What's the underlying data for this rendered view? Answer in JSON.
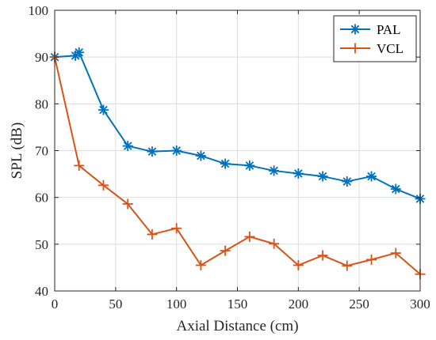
{
  "chart_data": {
    "type": "line",
    "xlabel": "Axial Distance (cm)",
    "ylabel": "SPL (dB)",
    "xlim": [
      0,
      300
    ],
    "ylim": [
      40,
      100
    ],
    "xticks": [
      0,
      50,
      100,
      150,
      200,
      250,
      300
    ],
    "yticks": [
      40,
      50,
      60,
      70,
      80,
      90,
      100
    ],
    "grid": true,
    "legend_position": "top-right",
    "series": [
      {
        "name": "PAL",
        "color": "#0072BD",
        "marker": "asterisk",
        "x": [
          0,
          17,
          20,
          40,
          60,
          80,
          100,
          120,
          140,
          160,
          180,
          200,
          220,
          240,
          260,
          280,
          300
        ],
        "y": [
          90,
          90.3,
          91,
          78.7,
          71,
          69.8,
          70,
          68.9,
          67.2,
          66.8,
          65.7,
          65.1,
          64.5,
          63.4,
          64.5,
          61.8,
          59.7
        ]
      },
      {
        "name": "VCL",
        "color": "#D95319",
        "marker": "plus",
        "x": [
          0,
          20,
          40,
          60,
          80,
          100,
          120,
          140,
          160,
          180,
          200,
          220,
          240,
          260,
          280,
          300
        ],
        "y": [
          90,
          66.8,
          62.6,
          58.6,
          52.1,
          53.4,
          45.5,
          48.6,
          51.6,
          50.1,
          45.5,
          47.6,
          45.4,
          46.7,
          48.1,
          43.6
        ]
      }
    ]
  }
}
